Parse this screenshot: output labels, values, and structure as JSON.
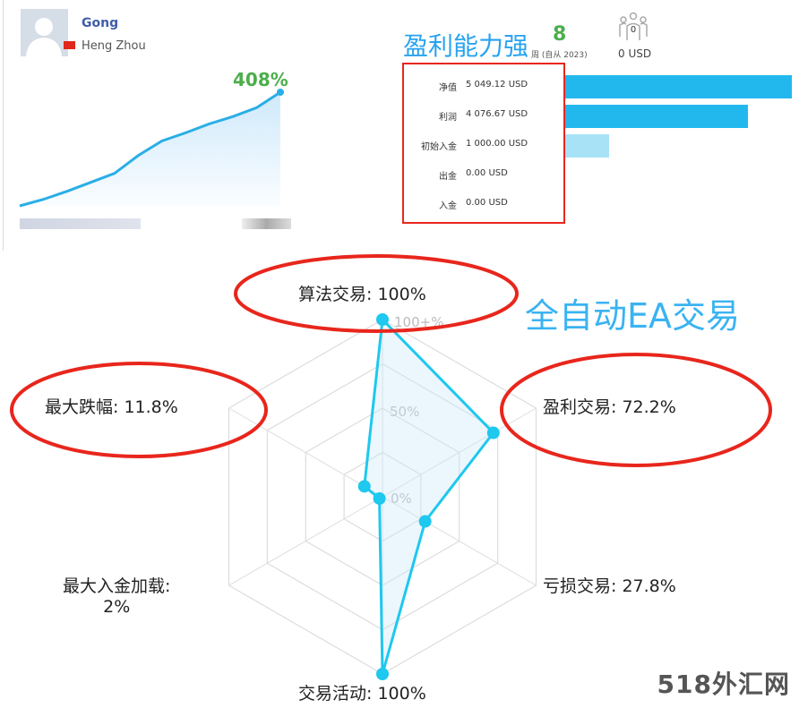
{
  "profile": {
    "name": "Gong",
    "city": "Heng Zhou",
    "flag": "china-flag-icon",
    "gain": "408%"
  },
  "growth_chart": {
    "type": "area",
    "color": "#29aee6",
    "values": [
      0,
      8,
      18,
      29,
      40,
      62,
      80,
      90,
      101,
      110,
      121,
      140
    ]
  },
  "header": {
    "headline": "盈利能力强",
    "weeks": "8",
    "weeks_suffix": "周 (自从 2023)",
    "subscribers": "0",
    "subscribers_usd": "0 USD"
  },
  "stats": [
    {
      "label": "净值",
      "value": "5 049.12 USD",
      "amount": 5049.12,
      "color": "#22b8ee"
    },
    {
      "label": "利润",
      "value": "4 076.67 USD",
      "amount": 4076.67,
      "color": "#22b8ee"
    },
    {
      "label": "初始入金",
      "value": "1 000.00 USD",
      "amount": 1000,
      "color": "#a8e2f7"
    },
    {
      "label": "出金",
      "value": "0.00 USD",
      "amount": 0,
      "color": "#22b8ee"
    },
    {
      "label": "入金",
      "value": "0.00 USD",
      "amount": 0,
      "color": "#22b8ee"
    }
  ],
  "radar": {
    "ring_labels": [
      "100+%",
      "50%",
      "0%"
    ],
    "axes": [
      {
        "label": "算法交易: 100%",
        "value": 100
      },
      {
        "label": "盈利交易: 72.2%",
        "value": 72.2
      },
      {
        "label": "亏损交易: 27.8%",
        "value": 27.8
      },
      {
        "label": "交易活动: 100%",
        "value": 100
      },
      {
        "label": "最大入金加载:\n2%",
        "value": 2
      },
      {
        "label": "最大跌幅: 11.8%",
        "value": 11.8
      }
    ],
    "color": "#1ec8ee",
    "highlight_color": "#e8261c"
  },
  "annotation": "全自动EA交易",
  "watermark": "518外汇网"
}
